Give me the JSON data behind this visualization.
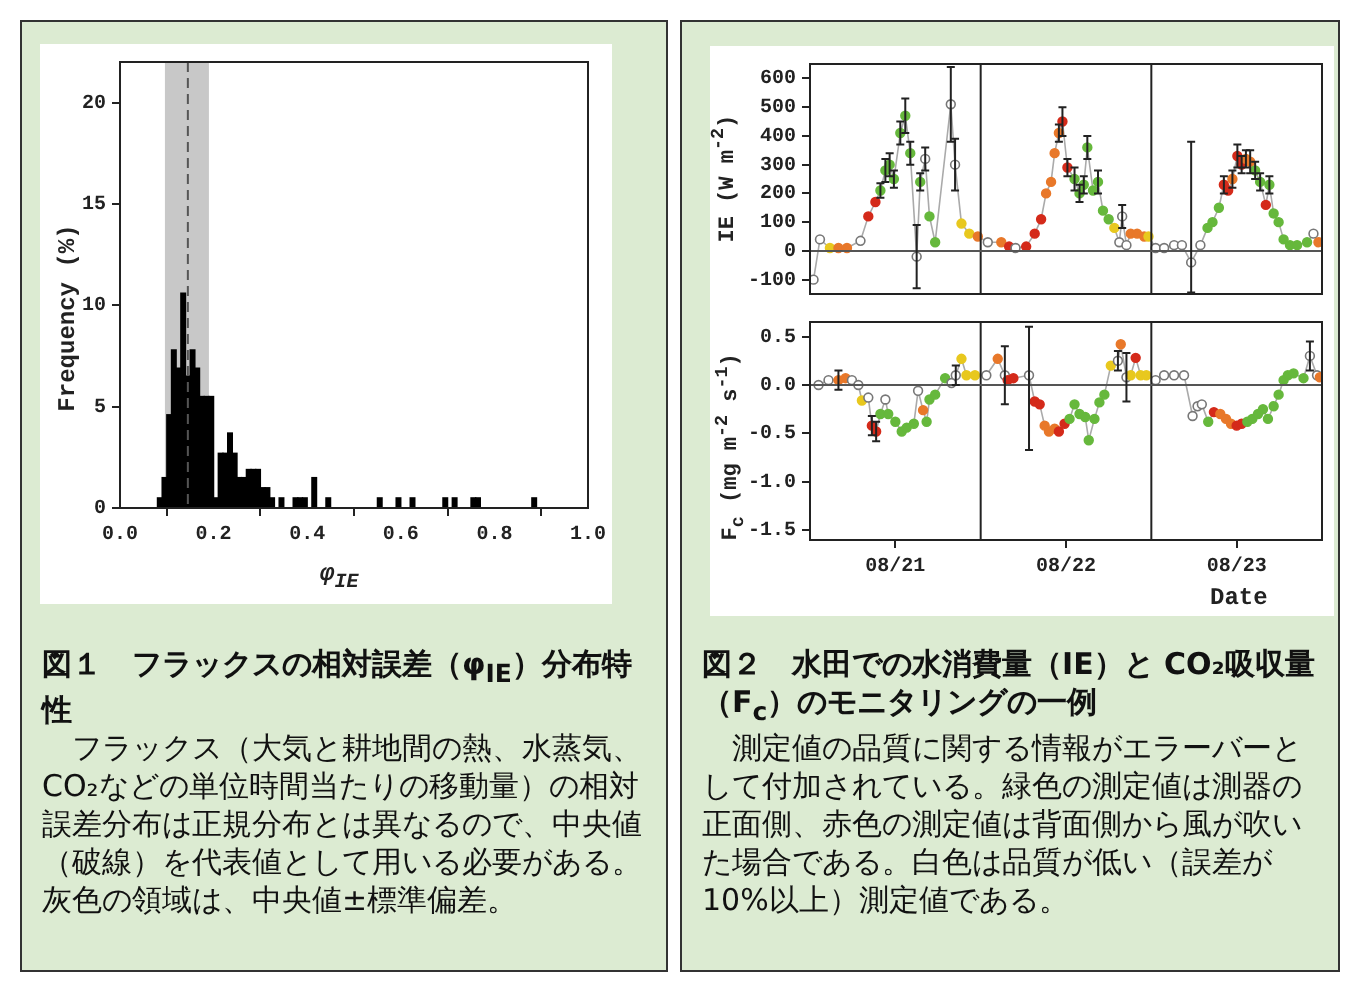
{
  "chart_data": [
    {
      "type": "histogram",
      "title": "図１　フラックスの相対誤差（φ$_{IE}$）分布特性",
      "xlabel": "φ$_{IE}$",
      "ylabel": "Frequency (%)",
      "bins": [
        0.08,
        0.09,
        0.1,
        0.11,
        0.12,
        0.13,
        0.14,
        0.15,
        0.16,
        0.17,
        0.18,
        0.19,
        0.2,
        0.21,
        0.22,
        0.23,
        0.24,
        0.25,
        0.26,
        0.27,
        0.28,
        0.29,
        0.3,
        0.31,
        0.32,
        0.33,
        0.34,
        0.35,
        0.36,
        0.37,
        0.38,
        0.39,
        0.4,
        0.41,
        0.42,
        0.43,
        0.44,
        0.45,
        0.46,
        0.47,
        0.48,
        0.49,
        0.5,
        0.51,
        0.52,
        0.53,
        0.54,
        0.55,
        0.56,
        0.57,
        0.58,
        0.59,
        0.6,
        0.61,
        0.62,
        0.63,
        0.64,
        0.65,
        0.66,
        0.67,
        0.68,
        0.69,
        0.7,
        0.71,
        0.72,
        0.73,
        0.74,
        0.75,
        0.76,
        0.77,
        0.78,
        0.79,
        0.8,
        0.81,
        0.82,
        0.83,
        0.84,
        0.85,
        0.86,
        0.87,
        0.88,
        0.89
      ],
      "values": [
        0.5,
        1.5,
        4.6,
        7.8,
        6.9,
        10.6,
        6.5,
        7.8,
        6.9,
        5.5,
        5.5,
        5.5,
        0.5,
        2.7,
        2.7,
        3.7,
        2.7,
        1.5,
        1.5,
        1.9,
        1.9,
        1.9,
        1.0,
        1.0,
        0.5,
        0,
        0.5,
        0,
        0,
        0.5,
        0.5,
        0.5,
        0,
        1.5,
        0,
        0,
        0.5,
        0,
        0,
        0,
        0,
        0,
        0,
        0,
        0,
        0,
        0,
        0.5,
        0,
        0,
        0,
        0.5,
        0,
        0,
        0.5,
        0,
        0,
        0,
        0,
        0,
        0,
        0.5,
        0,
        0.5,
        0,
        0,
        0,
        0.5,
        0.5,
        0,
        0,
        0,
        0,
        0,
        0,
        0,
        0,
        0,
        0,
        0,
        0.5
      ],
      "color": "#000000",
      "xlim": [
        0,
        1
      ],
      "xticks": [
        {
          "value": 0,
          "label": "0.0"
        },
        0.2,
        0.4,
        0.6,
        0.8,
        {
          "value": 1,
          "label": "1.0"
        }
      ],
      "ylim": [
        0,
        22
      ],
      "yticks": [
        0,
        5,
        10,
        15,
        20
      ],
      "bands": [
        {
          "axis": "x",
          "from": 0.096,
          "to": 0.19,
          "color": "#c8c8c8"
        }
      ],
      "ref_lines": [
        {
          "axis": "x",
          "value": 0.145,
          "color": "#555555",
          "line_style": "dashed"
        }
      ],
      "grid": false,
      "annotations": [
        "フラックス（大気と耕地間の熱、水蒸気、CO₂などの単位時間当たりの移動量）の相対誤差分布は正規分布とは異なるので、中央値（破線）を代表値として用いる必要がある。灰色の領域は、中央値±標準偏差。"
      ]
    },
    {
      "type": "line",
      "title": "図２　水田での水消費量（IE）と CO₂吸収量（F$_{c}$）のモニタリングの一例",
      "ylabel": "IE (W m$^{-2}$)",
      "x": [
        "--08-21T00:30",
        "--08-21T01:24",
        "--08-21T02:48",
        "--08-21T04:00",
        "--08-21T05:12",
        "--08-21T07:06",
        "--08-21T08:12",
        "--08-21T09:12",
        "--08-21T09:54",
        "--08-21T10:36",
        "--08-21T11:12",
        "--08-21T11:48",
        "--08-21T12:42",
        "--08-21T13:24",
        "--08-21T14:06",
        "--08-21T15:00",
        "--08-21T15:30",
        "--08-21T16:12",
        "--08-21T16:48",
        "--08-21T17:36",
        "--08-21T19:48",
        "--08-21T20:24",
        "--08-21T21:18",
        "--08-21T22:24",
        "--08-21T23:36",
        "--08-22T01:00",
        "--08-22T02:54",
        "--08-22T04:00",
        "--08-22T04:54",
        "--08-22T06:24",
        "--08-22T07:36",
        "--08-22T08:30",
        "--08-22T09:12",
        "--08-22T09:54",
        "--08-22T10:24",
        "--08-22T11:00",
        "--08-22T11:30",
        "--08-22T12:12",
        "--08-22T13:12",
        "--08-22T13:54",
        "--08-22T14:30",
        "--08-22T15:00",
        "--08-22T15:48",
        "--08-22T16:30",
        "--08-22T17:12",
        "--08-22T18:00",
        "--08-22T18:48",
        "--08-22T19:30",
        "--08-22T19:54",
        "--08-22T20:30",
        "--08-22T21:06",
        "--08-22T22:00",
        "--08-22T23:00",
        "--08-22T23:36",
        "--08-23T00:36",
        "--08-23T01:48",
        "--08-23T03:12",
        "--08-23T04:18",
        "--08-23T05:36",
        "--08-23T06:54",
        "--08-23T07:54",
        "--08-23T08:36",
        "--08-23T09:30",
        "--08-23T10:12",
        "--08-23T10:48",
        "--08-23T11:24",
        "--08-23T12:06",
        "--08-23T12:42",
        "--08-23T13:18",
        "--08-23T13:54",
        "--08-23T14:36",
        "--08-23T15:18",
        "--08-23T16:06",
        "--08-23T16:36",
        "--08-23T17:12",
        "--08-23T17:54",
        "--08-23T18:36",
        "--08-23T19:30",
        "--08-23T20:30",
        "--08-23T21:54",
        "--08-23T22:48",
        "--08-23T23:30"
      ],
      "series": [
        {
          "color": "#aaaaaa",
          "values": [
            -100,
            40,
            10,
            10,
            10,
            35,
            120,
            170,
            210,
            280,
            300,
            250,
            410,
            470,
            340,
            -20,
            240,
            320,
            120,
            30,
            510,
            300,
            95,
            60,
            50,
            30,
            30,
            15,
            10,
            15,
            60,
            110,
            200,
            240,
            340,
            410,
            450,
            290,
            250,
            200,
            230,
            360,
            210,
            240,
            140,
            110,
            80,
            30,
            120,
            20,
            60,
            60,
            50,
            50,
            10,
            10,
            20,
            20,
            -40,
            20,
            80,
            100,
            150,
            230,
            210,
            250,
            330,
            300,
            320,
            310,
            280,
            240,
            160,
            230,
            130,
            100,
            40,
            20,
            20,
            30,
            60,
            30
          ],
          "colors": [
            "#ffffff",
            "#ffffff",
            "#e8c81e",
            "#e8782a",
            "#e8782a",
            "#ffffff",
            "#d42a1a",
            "#d42a1a",
            "#66b83c",
            "#66b83c",
            "#66b83c",
            "#66b83c",
            "#66b83c",
            "#66b83c",
            "#66b83c",
            "#ffffff",
            "#66b83c",
            "#ffffff",
            "#66b83c",
            "#66b83c",
            "#ffffff",
            "#ffffff",
            "#e8c81e",
            "#e8c81e",
            "#e8782a",
            "#ffffff",
            "#e8782a",
            "#d42a1a",
            "#ffffff",
            "#d42a1a",
            "#d42a1a",
            "#d42a1a",
            "#e8782a",
            "#e8782a",
            "#e8782a",
            "#e8782a",
            "#d42a1a",
            "#d42a1a",
            "#66b83c",
            "#66b83c",
            "#66b83c",
            "#66b83c",
            "#66b83c",
            "#66b83c",
            "#66b83c",
            "#66b83c",
            "#e8c81e",
            "#ffffff",
            "#ffffff",
            "#ffffff",
            "#e8782a",
            "#e8782a",
            "#e8782a",
            "#e8c81e",
            "#ffffff",
            "#ffffff",
            "#ffffff",
            "#ffffff",
            "#ffffff",
            "#ffffff",
            "#66b83c",
            "#66b83c",
            "#66b83c",
            "#d42a1a",
            "#d42a1a",
            "#e8782a",
            "#d42a1a",
            "#d42a1a",
            "#e8782a",
            "#e8782a",
            "#66b83c",
            "#66b83c",
            "#d42a1a",
            "#66b83c",
            "#66b83c",
            "#66b83c",
            "#66b83c",
            "#66b83c",
            "#66b83c",
            "#66b83c",
            "#ffffff",
            "#e8782a"
          ],
          "errors": [
            null,
            null,
            null,
            null,
            null,
            null,
            null,
            null,
            25,
            40,
            40,
            30,
            40,
            60,
            40,
            110,
            30,
            40,
            null,
            null,
            130,
            90,
            null,
            null,
            null,
            null,
            null,
            null,
            null,
            null,
            null,
            null,
            null,
            null,
            null,
            30,
            50,
            30,
            40,
            30,
            30,
            40,
            null,
            40,
            null,
            null,
            null,
            null,
            40,
            null,
            null,
            null,
            null,
            null,
            null,
            null,
            null,
            null,
            [
              -145,
              380
            ],
            null,
            null,
            null,
            null,
            30,
            null,
            30,
            40,
            30,
            30,
            40,
            30,
            30,
            null,
            30,
            null,
            null,
            null,
            null,
            null,
            null,
            null,
            null
          ]
        }
      ],
      "xlim": [
        "--08-21T00:00",
        "--08-24T00:00"
      ],
      "xticks": [
        {
          "value": "--08-21T12:00",
          "label": null
        },
        {
          "value": "--08-22T12:00",
          "label": null
        },
        {
          "value": "--08-23T12:00",
          "label": null
        }
      ],
      "ylim": [
        -150,
        650
      ],
      "yticks": [
        -100,
        0,
        100,
        200,
        300,
        400,
        500,
        600
      ],
      "ref_lines": [
        {
          "axis": "x",
          "value": "--08-22T00:00",
          "color": "#222222"
        },
        {
          "axis": "x",
          "value": "--08-23T00:00",
          "color": "#222222"
        },
        {
          "axis": "y",
          "value": 0,
          "color": "#555555"
        }
      ],
      "marker": "circle",
      "line_style": "solid",
      "grid": false,
      "tick_labels": "y",
      "annotations": [
        "測定値の品質に関する情報がエラーバーとして付加されている。緑色の測定値は測器の正面側、赤色の測定値は背面側から風が吹いた場合である。白色は品質が低い（誤差が 10%以上）測定値である。"
      ]
    },
    {
      "type": "line",
      "xlabel": "Date",
      "ylabel": "F$_{c}$ (mg m$^{-2}$ s$^{-1}$)",
      "x": [
        "--08-21T01:12",
        "--08-21T02:36",
        "--08-21T04:00",
        "--08-21T05:00",
        "--08-21T05:54",
        "--08-21T06:48",
        "--08-21T07:18",
        "--08-21T08:12",
        "--08-21T08:42",
        "--08-21T09:18",
        "--08-21T09:54",
        "--08-21T10:36",
        "--08-21T11:00",
        "--08-21T12:00",
        "--08-21T12:54",
        "--08-21T13:36",
        "--08-21T14:36",
        "--08-21T15:12",
        "--08-21T15:54",
        "--08-21T16:24",
        "--08-21T16:48",
        "--08-21T17:36",
        "--08-21T19:00",
        "--08-21T19:54",
        "--08-21T20:30",
        "--08-21T21:18",
        "--08-21T22:00",
        "--08-21T23:12",
        "--08-22T00:48",
        "--08-22T02:24",
        "--08-22T03:24",
        "--08-22T03:48",
        "--08-22T04:36",
        "--08-22T06:48",
        "--08-22T07:36",
        "--08-22T08:18",
        "--08-22T09:00",
        "--08-22T09:36",
        "--08-22T10:24",
        "--08-22T11:00",
        "--08-22T11:48",
        "--08-22T12:30",
        "--08-22T13:12",
        "--08-22T13:54",
        "--08-22T14:42",
        "--08-22T15:12",
        "--08-22T16:00",
        "--08-22T16:42",
        "--08-22T17:24",
        "--08-22T18:18",
        "--08-22T19:18",
        "--08-22T19:42",
        "--08-22T20:30",
        "--08-22T21:06",
        "--08-22T21:48",
        "--08-22T22:30",
        "--08-22T23:18",
        "--08-23T00:36",
        "--08-23T01:48",
        "--08-23T03:12",
        "--08-23T04:36",
        "--08-23T05:48",
        "--08-23T06:30",
        "--08-23T07:06",
        "--08-23T08:00",
        "--08-23T08:48",
        "--08-23T09:42",
        "--08-23T10:30",
        "--08-23T11:12",
        "--08-23T12:00",
        "--08-23T12:42",
        "--08-23T13:30",
        "--08-23T14:12",
        "--08-23T15:00",
        "--08-23T15:42",
        "--08-23T16:24",
        "--08-23T17:12",
        "--08-23T17:54",
        "--08-23T18:36",
        "--08-23T19:12",
        "--08-23T20:00",
        "--08-23T21:24",
        "--08-23T22:18",
        "--08-23T23:18",
        "--08-23T23:42"
      ],
      "series": [
        {
          "color": "#aaaaaa",
          "values": [
            0.0,
            0.05,
            0.05,
            0.07,
            0.05,
            0.0,
            -0.16,
            -0.13,
            -0.42,
            -0.48,
            -0.3,
            -0.15,
            -0.3,
            -0.38,
            -0.48,
            -0.44,
            -0.4,
            -0.06,
            -0.26,
            -0.38,
            -0.15,
            -0.1,
            0.07,
            0.02,
            0.1,
            0.27,
            0.1,
            0.1,
            0.1,
            0.27,
            0.1,
            0.05,
            0.07,
            0.1,
            -0.17,
            -0.2,
            -0.42,
            -0.48,
            -0.45,
            -0.48,
            -0.4,
            -0.35,
            -0.2,
            -0.3,
            -0.33,
            -0.57,
            -0.35,
            -0.18,
            -0.1,
            0.2,
            0.25,
            0.42,
            0.08,
            0.1,
            0.28,
            0.1,
            0.1,
            0.05,
            0.1,
            0.1,
            0.1,
            -0.32,
            -0.22,
            -0.2,
            -0.38,
            -0.28,
            -0.3,
            -0.35,
            -0.4,
            -0.42,
            -0.4,
            -0.38,
            -0.35,
            -0.3,
            -0.25,
            -0.35,
            -0.22,
            -0.1,
            0.05,
            0.1,
            0.12,
            0.07,
            0.3,
            0.1,
            0.08
          ],
          "colors": [
            "#ffffff",
            "#ffffff",
            "#e8782a",
            "#e8782a",
            "#ffffff",
            "#ffffff",
            "#e8c81e",
            "#ffffff",
            "#d42a1a",
            "#d42a1a",
            "#66b83c",
            "#ffffff",
            "#66b83c",
            "#66b83c",
            "#66b83c",
            "#66b83c",
            "#66b83c",
            "#ffffff",
            "#e8782a",
            "#66b83c",
            "#66b83c",
            "#66b83c",
            "#66b83c",
            "#ffffff",
            "#ffffff",
            "#e8c81e",
            "#e8c81e",
            "#e8c81e",
            "#ffffff",
            "#e8782a",
            "#ffffff",
            "#d42a1a",
            "#d42a1a",
            "#ffffff",
            "#d42a1a",
            "#d42a1a",
            "#e8782a",
            "#e8782a",
            "#e8782a",
            "#d42a1a",
            "#d42a1a",
            "#66b83c",
            "#66b83c",
            "#66b83c",
            "#66b83c",
            "#66b83c",
            "#66b83c",
            "#66b83c",
            "#66b83c",
            "#e8c81e",
            "#ffffff",
            "#e8782a",
            "#ffffff",
            "#e8c81e",
            "#d42a1a",
            "#e8c81e",
            "#e8c81e",
            "#ffffff",
            "#ffffff",
            "#ffffff",
            "#ffffff",
            "#ffffff",
            "#ffffff",
            "#ffffff",
            "#66b83c",
            "#d42a1a",
            "#e8782a",
            "#e8782a",
            "#e8782a",
            "#d42a1a",
            "#d42a1a",
            "#66b83c",
            "#66b83c",
            "#66b83c",
            "#66b83c",
            "#66b83c",
            "#66b83c",
            "#66b83c",
            "#66b83c",
            "#66b83c",
            "#66b83c",
            "#66b83c",
            "#ffffff",
            "#ffffff",
            "#e8782a"
          ],
          "errors": [
            null,
            null,
            0.1,
            null,
            null,
            null,
            null,
            null,
            0.1,
            0.1,
            null,
            null,
            null,
            null,
            null,
            null,
            null,
            null,
            null,
            null,
            null,
            null,
            null,
            null,
            0.1,
            null,
            null,
            null,
            null,
            null,
            0.3,
            null,
            null,
            [
              -0.67,
              0.6
            ],
            null,
            null,
            null,
            null,
            null,
            null,
            null,
            null,
            null,
            null,
            null,
            null,
            null,
            null,
            null,
            null,
            0.1,
            null,
            0.25,
            null,
            null,
            null,
            null,
            null,
            null,
            null,
            null,
            null,
            null,
            null,
            null,
            null,
            null,
            null,
            null,
            null,
            null,
            null,
            null,
            null,
            null,
            null,
            null,
            null,
            null,
            null,
            null,
            null,
            0.15,
            null,
            null
          ]
        }
      ],
      "xlim": [
        "--08-21T00:00",
        "--08-24T00:00"
      ],
      "xticks": [
        {
          "value": "--08-21T12:00",
          "label": "08/21"
        },
        {
          "value": "--08-22T12:00",
          "label": "08/22"
        },
        {
          "value": "--08-23T12:00",
          "label": "08/23"
        }
      ],
      "ylim": [
        -1.6,
        0.65
      ],
      "yticks": [
        0.5,
        {
          "value": 0,
          "label": "0.0"
        },
        -0.5,
        {
          "value": -1,
          "label": "-1.0"
        },
        -1.5
      ],
      "ref_lines": [
        {
          "axis": "x",
          "value": "--08-22T00:00",
          "color": "#222222"
        },
        {
          "axis": "x",
          "value": "--08-23T00:00",
          "color": "#222222"
        },
        {
          "axis": "y",
          "value": 0,
          "color": "#555555"
        }
      ],
      "marker": "circle",
      "line_style": "solid",
      "grid": false
    }
  ]
}
